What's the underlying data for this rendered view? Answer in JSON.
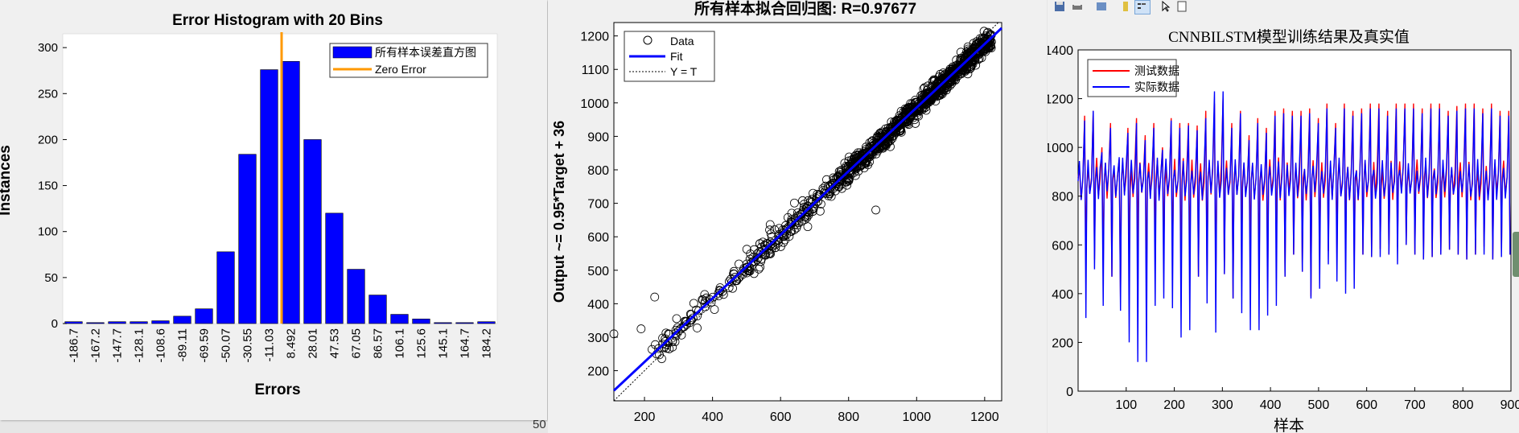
{
  "histogram": {
    "title": "Error Histogram with 20 Bins",
    "xlabel": "Errors",
    "ylabel": "Instances",
    "legend": [
      "所有样本误差直方图",
      "Zero Error"
    ],
    "y_ticks": [
      "0",
      "50",
      "100",
      "150",
      "200",
      "250",
      "300"
    ],
    "bar_color": "#0000ff",
    "zero_line_color": "#ff9900"
  },
  "regression": {
    "title": "所有样本拟合回归图: R=0.97677",
    "ylabel": "Output ~= 0.95*Target + 36",
    "legend": [
      "Data",
      "Fit",
      "Y = T"
    ],
    "x_ticks": [
      "200",
      "400",
      "600",
      "800",
      "1000",
      "1200"
    ],
    "y_ticks": [
      "200",
      "300",
      "400",
      "500",
      "600",
      "700",
      "800",
      "900",
      "1000",
      "1100",
      "1200"
    ]
  },
  "timeseries": {
    "title": "CNNBILSTM模型训练结果及真实值",
    "xlabel": "样本",
    "legend": [
      "测试数据",
      "实际数据"
    ],
    "x_ticks": [
      "100",
      "200",
      "300",
      "400",
      "500",
      "600",
      "700",
      "800",
      "900"
    ],
    "y_ticks": [
      "0",
      "200",
      "400",
      "600",
      "800",
      "1000",
      "1200",
      "1400"
    ],
    "colors": {
      "test": "#ff0000",
      "actual": "#0000ff"
    }
  },
  "background_fragment": "50",
  "chart_data": [
    {
      "type": "bar",
      "title": "Error Histogram with 20 Bins",
      "xlabel": "Errors",
      "ylabel": "Instances",
      "categories": [
        "-186.7",
        "-167.2",
        "-147.7",
        "-128.1",
        "-108.6",
        "-89.11",
        "-69.59",
        "-50.07",
        "-30.55",
        "-11.03",
        "8.492",
        "28.01",
        "47.53",
        "67.05",
        "86.57",
        "106.1",
        "125.6",
        "145.1",
        "164.7",
        "184.2"
      ],
      "values": [
        2,
        1,
        2,
        2,
        3,
        8,
        16,
        78,
        184,
        276,
        285,
        200,
        120,
        59,
        31,
        10,
        5,
        1,
        1,
        2
      ],
      "ylim": [
        0,
        315
      ],
      "zero_error_position": 8.492,
      "legend": [
        "所有样本误差直方图",
        "Zero Error"
      ]
    },
    {
      "type": "scatter",
      "title": "所有样本拟合回归图: R=0.97677",
      "xlabel": "",
      "ylabel": "Output ~= 0.95*Target + 36",
      "xlim": [
        110,
        1250
      ],
      "ylim": [
        110,
        1240
      ],
      "fit": {
        "slope": 0.95,
        "intercept": 36
      },
      "r": 0.97677,
      "legend": [
        "Data",
        "Fit",
        "Y = T"
      ],
      "outliers": [
        [
          110,
          310
        ],
        [
          190,
          325
        ],
        [
          230,
          420
        ],
        [
          480,
          480
        ],
        [
          880,
          680
        ]
      ]
    },
    {
      "type": "line",
      "title": "CNNBILSTM模型训练结果及真实值",
      "xlabel": "样本",
      "ylabel": "",
      "xlim": [
        0,
        900
      ],
      "ylim": [
        0,
        1400
      ],
      "series": [
        {
          "name": "测试数据",
          "peaks": [
            1130,
            1150,
            1000,
            1100,
            950,
            1080,
            1120,
            1050,
            1100,
            1000,
            1120,
            1100,
            1100,
            1090,
            1150,
            1180,
            1200,
            1100,
            1150,
            1050,
            1120,
            1080,
            1150,
            1160,
            1150,
            1150,
            1160,
            1120,
            1180,
            1100,
            1180,
            1150,
            1160,
            1180,
            1180,
            1150,
            1180,
            1180,
            1180,
            1160,
            1180,
            1180,
            1150,
            1170,
            1180,
            1180,
            1160,
            1180,
            1150,
            1150
          ]
        },
        {
          "name": "实际数据",
          "peaks": [
            1110,
            1150,
            980,
            1080,
            960,
            1060,
            1100,
            1030,
            1080,
            990,
            1110,
            1080,
            1090,
            1070,
            1120,
            1230,
            1230,
            1080,
            1140,
            1030,
            1100,
            1060,
            1130,
            1140,
            1130,
            1130,
            1140,
            1100,
            1160,
            1080,
            1160,
            1130,
            1140,
            1160,
            1160,
            1130,
            1160,
            1160,
            1160,
            1140,
            1160,
            1160,
            1130,
            1150,
            1160,
            1160,
            1140,
            1160,
            1130,
            1130
          ]
        }
      ]
    }
  ]
}
